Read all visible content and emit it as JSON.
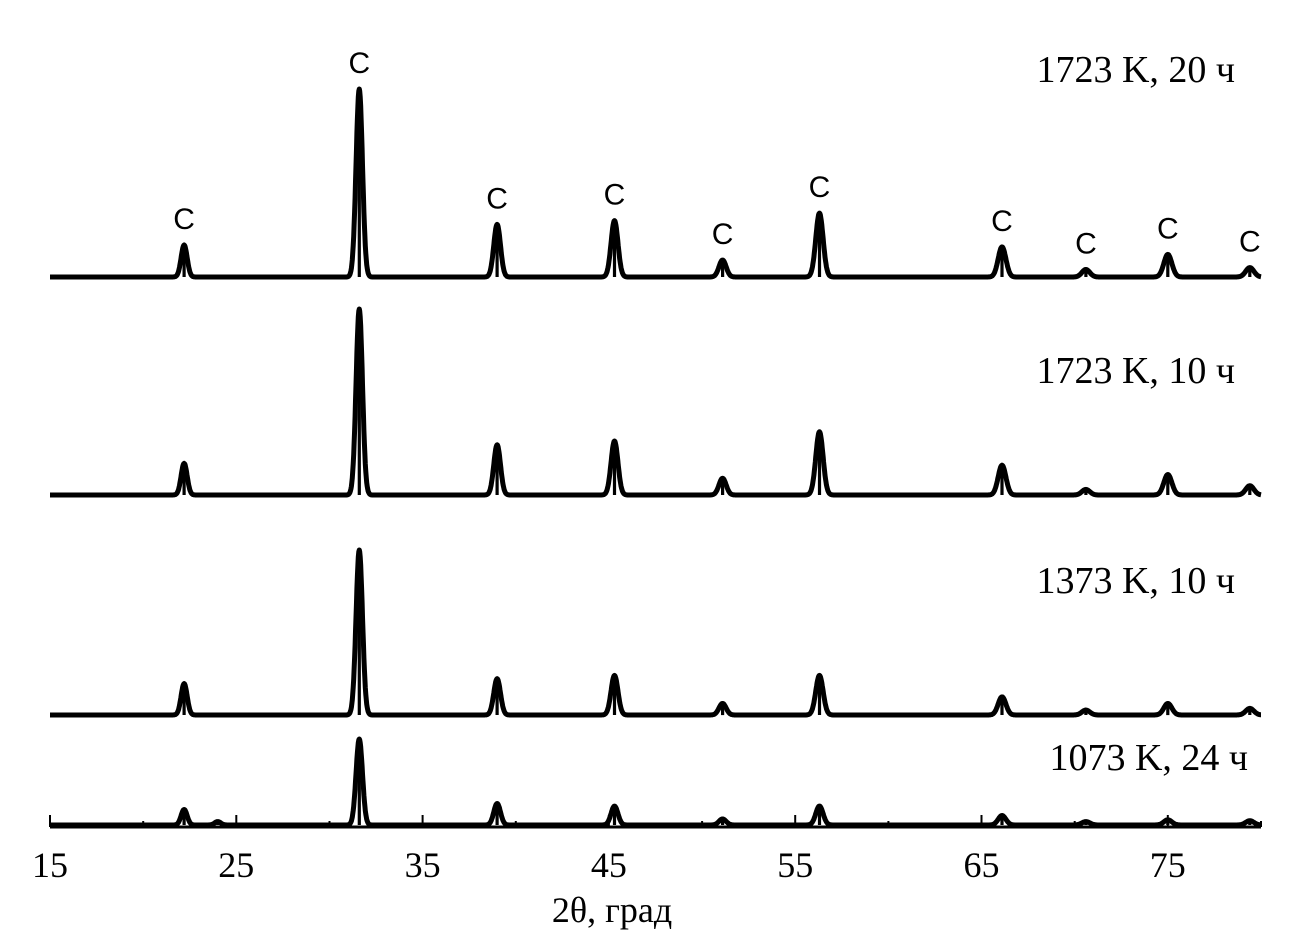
{
  "chart_data": {
    "type": "line",
    "xlabel": "2θ, град",
    "xlim": [
      15,
      80
    ],
    "x_ticks": [
      15,
      25,
      35,
      45,
      55,
      65,
      75
    ],
    "y_ticks_shown": false,
    "peak_marker": "C",
    "peak_marker_positions": [
      22.2,
      31.6,
      39.0,
      45.3,
      51.1,
      56.3,
      66.1,
      70.6,
      75.0,
      79.4
    ],
    "series": [
      {
        "name": "1723 K, 20 ч",
        "peaks": [
          [
            22.2,
            0.17
          ],
          [
            31.6,
            1.0
          ],
          [
            39.0,
            0.28
          ],
          [
            45.3,
            0.3
          ],
          [
            51.1,
            0.09
          ],
          [
            56.3,
            0.34
          ],
          [
            66.1,
            0.16
          ],
          [
            70.6,
            0.04
          ],
          [
            75.0,
            0.12
          ],
          [
            79.4,
            0.05
          ]
        ]
      },
      {
        "name": "1723 K, 10 ч",
        "peaks": [
          [
            22.2,
            0.17
          ],
          [
            31.6,
            1.0
          ],
          [
            39.0,
            0.27
          ],
          [
            45.3,
            0.29
          ],
          [
            51.1,
            0.09
          ],
          [
            56.3,
            0.34
          ],
          [
            66.1,
            0.16
          ],
          [
            70.6,
            0.03
          ],
          [
            75.0,
            0.11
          ],
          [
            79.4,
            0.05
          ]
        ]
      },
      {
        "name": "1373 K, 10 ч",
        "peaks": [
          [
            22.2,
            0.19
          ],
          [
            31.6,
            1.0
          ],
          [
            39.0,
            0.22
          ],
          [
            45.3,
            0.24
          ],
          [
            51.1,
            0.07
          ],
          [
            56.3,
            0.24
          ],
          [
            66.1,
            0.11
          ],
          [
            70.6,
            0.03
          ],
          [
            75.0,
            0.07
          ],
          [
            79.4,
            0.04
          ]
        ]
      },
      {
        "name": "1073 K, 24 ч",
        "peaks": [
          [
            22.2,
            0.18
          ],
          [
            24.0,
            0.04
          ],
          [
            31.6,
            1.0
          ],
          [
            39.0,
            0.25
          ],
          [
            45.3,
            0.22
          ],
          [
            51.1,
            0.07
          ],
          [
            56.3,
            0.22
          ],
          [
            66.1,
            0.11
          ],
          [
            70.6,
            0.04
          ],
          [
            75.0,
            0.06
          ],
          [
            79.4,
            0.05
          ]
        ]
      }
    ]
  }
}
